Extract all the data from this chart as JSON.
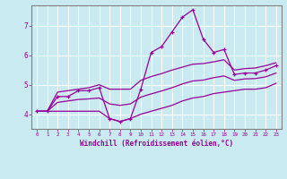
{
  "xlabel": "Windchill (Refroidissement éolien,°C)",
  "x_values": [
    0,
    1,
    2,
    3,
    4,
    5,
    6,
    7,
    8,
    9,
    10,
    11,
    12,
    13,
    14,
    15,
    16,
    17,
    18,
    19,
    20,
    21,
    22,
    23
  ],
  "y_main": [
    4.1,
    4.1,
    4.6,
    4.6,
    4.8,
    4.8,
    4.9,
    3.85,
    3.75,
    3.85,
    4.85,
    6.1,
    6.3,
    6.8,
    7.3,
    7.55,
    6.55,
    6.1,
    6.2,
    5.35,
    5.4,
    5.4,
    5.5,
    5.65
  ],
  "y_upper": [
    4.1,
    4.1,
    4.75,
    4.8,
    4.85,
    4.9,
    5.0,
    4.85,
    4.85,
    4.85,
    5.15,
    5.28,
    5.38,
    5.5,
    5.6,
    5.7,
    5.72,
    5.78,
    5.85,
    5.5,
    5.55,
    5.57,
    5.65,
    5.75
  ],
  "y_lower": [
    4.1,
    4.1,
    4.1,
    4.1,
    4.1,
    4.1,
    4.1,
    3.85,
    3.75,
    3.85,
    4.0,
    4.1,
    4.2,
    4.3,
    4.45,
    4.55,
    4.6,
    4.7,
    4.75,
    4.8,
    4.85,
    4.85,
    4.9,
    5.05
  ],
  "y_mid": [
    4.1,
    4.1,
    4.4,
    4.45,
    4.5,
    4.52,
    4.55,
    4.35,
    4.3,
    4.35,
    4.58,
    4.69,
    4.79,
    4.9,
    5.03,
    5.13,
    5.16,
    5.24,
    5.3,
    5.15,
    5.2,
    5.21,
    5.27,
    5.4
  ],
  "line_color": "#990099",
  "bg_color": "#c8eaf0",
  "grid_color": "#ffffff",
  "ylim": [
    3.5,
    7.7
  ],
  "xlim": [
    -0.5,
    23.5
  ],
  "yticks": [
    4,
    5,
    6,
    7
  ]
}
